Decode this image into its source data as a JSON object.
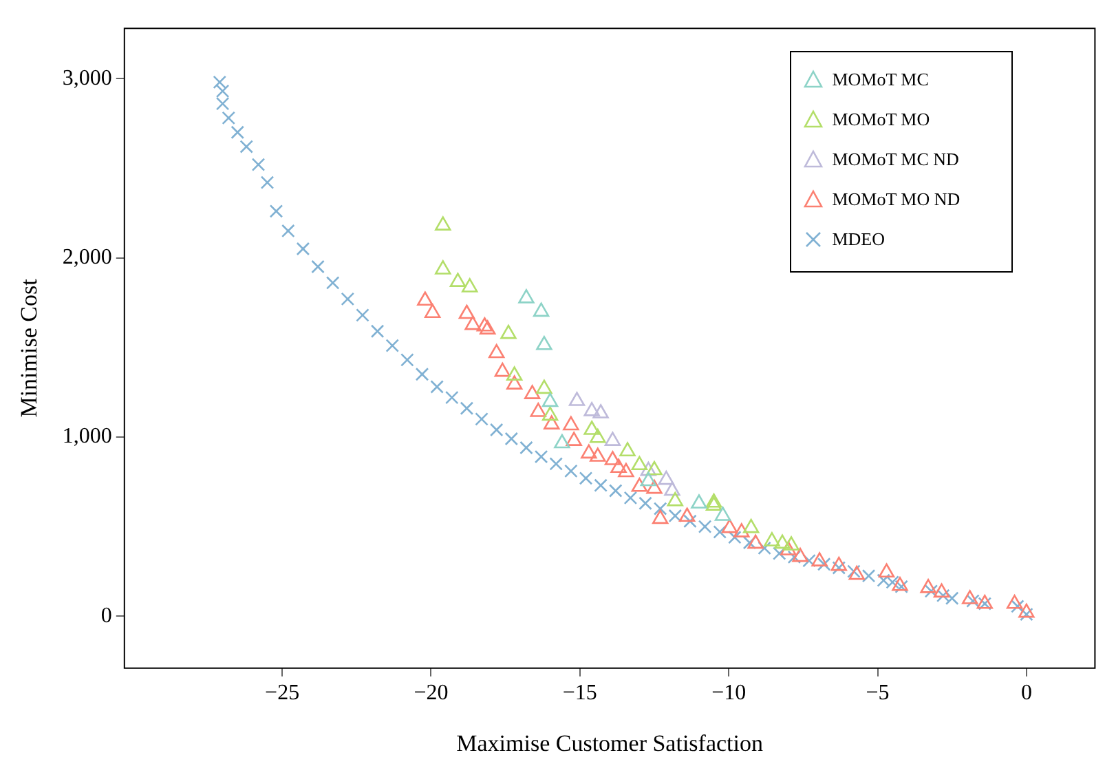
{
  "chart_data": {
    "type": "scatter",
    "xlabel": "Maximise Customer Satisfaction",
    "ylabel": "Minimise Cost",
    "xlim": [
      -30.3,
      2.3
    ],
    "ylim": [
      -290,
      3280
    ],
    "xticks": [
      {
        "value": -25,
        "label": "−25"
      },
      {
        "value": -20,
        "label": "−20"
      },
      {
        "value": -15,
        "label": "−15"
      },
      {
        "value": -10,
        "label": "−10"
      },
      {
        "value": -5,
        "label": "−5"
      },
      0
    ],
    "yticks": [
      0,
      {
        "value": 1000,
        "label": "1,000"
      },
      {
        "value": 2000,
        "label": "2,000"
      },
      {
        "value": 3000,
        "label": "3,000"
      }
    ],
    "grid": false,
    "legend": "top right",
    "series": [
      {
        "name": "MOMoT MC",
        "color": "#8dd3c7",
        "marker": "triangle",
        "x": [
          -16.8,
          -16.3,
          -16.2,
          -16.0,
          -15.6,
          -12.7,
          -11.0,
          -10.2
        ],
        "values": [
          1774,
          1699,
          1513,
          1196,
          965,
          754,
          629,
          560
        ]
      },
      {
        "name": "MOMoT MO",
        "color": "#b3de69",
        "marker": "triangle",
        "x": [
          -19.6,
          -19.6,
          -19.1,
          -18.7,
          -17.4,
          -17.2,
          -16.2,
          -16.0,
          -14.6,
          -14.4,
          -13.4,
          -13.0,
          -12.5,
          -11.8,
          -10.5,
          -10.5,
          -9.25,
          -8.55,
          -8.2,
          -7.9
        ],
        "values": [
          2180,
          1935,
          1865,
          1835,
          1575,
          1343,
          1269,
          1119,
          1040,
          995,
          920,
          843,
          815,
          642,
          634,
          617,
          492,
          418,
          405,
          395
        ]
      },
      {
        "name": "MOMoT MC ND",
        "color": "#bebada",
        "marker": "triangle",
        "x": [
          -15.1,
          -14.6,
          -14.3,
          -13.9,
          -12.7,
          -12.1,
          -11.9
        ],
        "values": [
          1201,
          1144,
          1132,
          978,
          811,
          761,
          700
        ]
      },
      {
        "name": "MOMoT MO ND",
        "color": "#fb8072",
        "marker": "triangle",
        "x": [
          -20.2,
          -19.95,
          -18.8,
          -18.6,
          -18.2,
          -18.1,
          -17.8,
          -17.6,
          -17.2,
          -16.6,
          -16.4,
          -15.95,
          -15.3,
          -15.2,
          -14.7,
          -14.4,
          -13.9,
          -13.7,
          -13.45,
          -13.0,
          -12.5,
          -12.3,
          -11.4,
          -9.97,
          -9.57,
          -9.1,
          -8.0,
          -7.6,
          -6.95,
          -6.3,
          -5.7,
          -4.7,
          -4.25,
          -3.3,
          -2.85,
          -1.9,
          -1.4,
          -0.4,
          0
        ],
        "values": [
          1761,
          1692,
          1687,
          1625,
          1617,
          1600,
          1468,
          1364,
          1293,
          1239,
          1140,
          1070,
          1065,
          978,
          908,
          890,
          871,
          828,
          804,
          722,
          711,
          543,
          555,
          492,
          468,
          405,
          368,
          331,
          306,
          281,
          231,
          244,
          169,
          157,
          132,
          95,
          69,
          69,
          20
        ]
      },
      {
        "name": "MDEO",
        "color": "#80b1d3",
        "marker": "cross",
        "x": [
          -27.1,
          -27,
          -27,
          -26.8,
          -26.5,
          -26.2,
          -25.8,
          -25.5,
          -25.2,
          -24.8,
          -24.3,
          -23.8,
          -23.3,
          -22.8,
          -22.3,
          -21.8,
          -21.3,
          -20.8,
          -20.3,
          -19.8,
          -19.3,
          -18.8,
          -18.3,
          -17.8,
          -17.3,
          -16.8,
          -16.3,
          -15.8,
          -15.3,
          -14.8,
          -14.3,
          -13.8,
          -13.3,
          -12.8,
          -12.3,
          -11.8,
          -11.3,
          -10.8,
          -10.3,
          -9.8,
          -9.3,
          -8.8,
          -8.3,
          -7.8,
          -7.3,
          -6.8,
          -6.3,
          -5.8,
          -5.3,
          -4.8,
          -4.5,
          -4.2,
          -3.2,
          -2.8,
          -2.5,
          -1.8,
          -1.4,
          -0.3,
          0
        ],
        "values": [
          2980,
          2930,
          2860,
          2780,
          2700,
          2620,
          2520,
          2420,
          2260,
          2150,
          2050,
          1950,
          1860,
          1770,
          1680,
          1590,
          1510,
          1430,
          1350,
          1280,
          1220,
          1160,
          1100,
          1040,
          990,
          940,
          890,
          850,
          810,
          770,
          730,
          700,
          660,
          630,
          600,
          560,
          530,
          500,
          470,
          440,
          410,
          380,
          350,
          330,
          310,
          290,
          270,
          250,
          225,
          200,
          190,
          165,
          140,
          115,
          100,
          85,
          70,
          55,
          10
        ]
      }
    ]
  }
}
